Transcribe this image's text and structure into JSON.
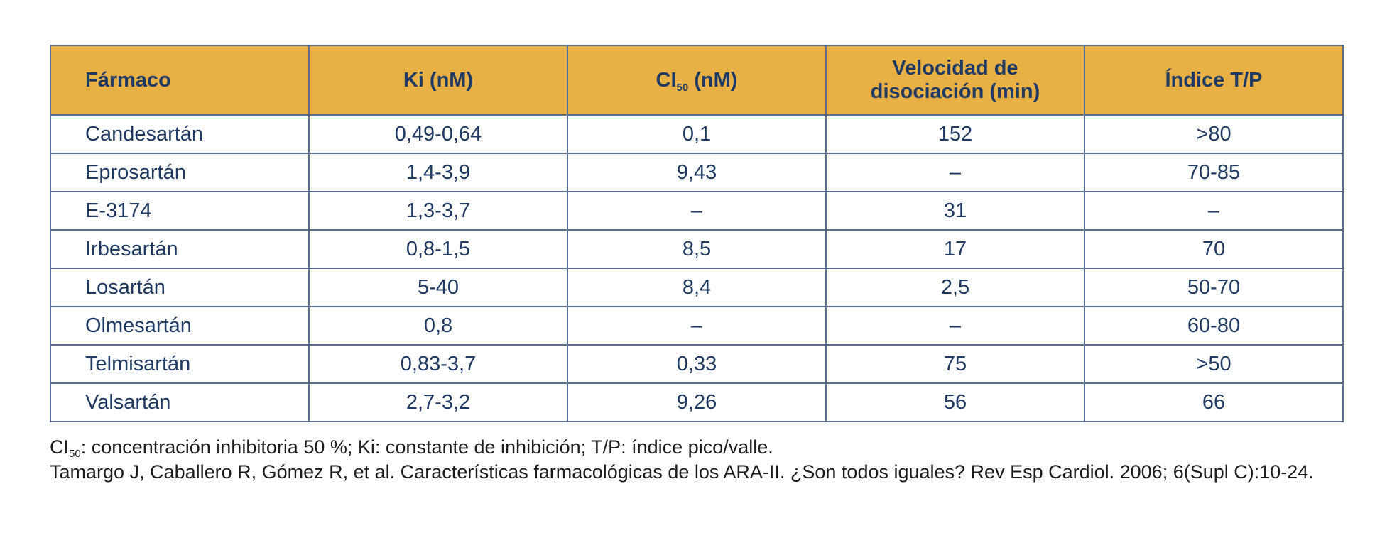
{
  "table": {
    "headers": {
      "drug": "Fármaco",
      "ki": "Ki (nM)",
      "ci_prefix": "CI",
      "ci_sub": "50",
      "ci_suffix": " (nM)",
      "dissociation_line1": "Velocidad de",
      "dissociation_line2": "disociación (min)",
      "tp_index": "Índice T/P"
    },
    "rows": [
      {
        "drug": "Candesartán",
        "ki": "0,49-0,64",
        "ci50": "0,1",
        "dissociation": "152",
        "tp": ">80"
      },
      {
        "drug": "Eprosartán",
        "ki": "1,4-3,9",
        "ci50": "9,43",
        "dissociation": "–",
        "tp": "70-85"
      },
      {
        "drug": "E-3174",
        "ki": "1,3-3,7",
        "ci50": "–",
        "dissociation": "31",
        "tp": "–"
      },
      {
        "drug": "Irbesartán",
        "ki": "0,8-1,5",
        "ci50": "8,5",
        "dissociation": "17",
        "tp": "70"
      },
      {
        "drug": "Losartán",
        "ki": "5-40",
        "ci50": "8,4",
        "dissociation": "2,5",
        "tp": "50-70"
      },
      {
        "drug": "Olmesartán",
        "ki": "0,8",
        "ci50": "–",
        "dissociation": "–",
        "tp": "60-80"
      },
      {
        "drug": "Telmisartán",
        "ki": "0,83-3,7",
        "ci50": "0,33",
        "dissociation": "75",
        "tp": ">50"
      },
      {
        "drug": "Valsartán",
        "ki": "2,7-3,2",
        "ci50": "9,26",
        "dissociation": "56",
        "tp": "66"
      }
    ]
  },
  "notes": {
    "abbrev_prefix": "CI",
    "abbrev_sub": "50",
    "abbrev_rest": ": concentración inhibitoria 50 %; Ki: constante de inhibición; T/P: índice pico/valle.",
    "reference": "Tamargo J, Caballero R, Gómez R, et al. Características farmacológicas de los ARA-II. ¿Son todos iguales? Rev Esp Cardiol. 2006; 6(Supl C):10-24."
  },
  "colors": {
    "header_background": "#e8b045",
    "text_primary": "#1f3a63",
    "border": "#5a6f8f"
  }
}
